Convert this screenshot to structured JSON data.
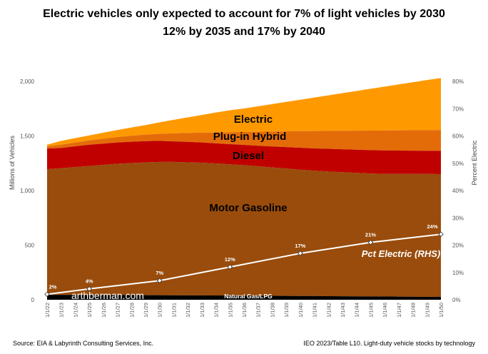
{
  "chart_data": {
    "type": "area",
    "title_lines": [
      "Electric vehicles only expected to account for 7% of light vehicles by 2030",
      "12% by 2035 and 17% by 2040"
    ],
    "ylabel": "Millions of Vehicles",
    "y2label": "Percent Electric",
    "ylim": [
      0,
      2000
    ],
    "y2lim": [
      0,
      80
    ],
    "yticks": [
      "0",
      "500",
      "1,000",
      "1,500",
      "2,000"
    ],
    "y2ticks": [
      "0%",
      "10%",
      "20%",
      "30%",
      "40%",
      "50%",
      "60%",
      "70%",
      "80%"
    ],
    "x": [
      "1/1/22",
      "1/1/23",
      "1/1/24",
      "1/1/25",
      "1/1/26",
      "1/1/27",
      "1/1/28",
      "1/1/29",
      "1/1/30",
      "1/1/31",
      "1/1/32",
      "1/1/33",
      "1/1/34",
      "1/1/35",
      "1/1/36",
      "1/1/37",
      "1/1/38",
      "1/1/39",
      "1/1/40",
      "1/1/41",
      "1/1/42",
      "1/1/43",
      "1/1/44",
      "1/1/45",
      "1/1/46",
      "1/1/47",
      "1/1/48",
      "1/1/49",
      "1/1/50"
    ],
    "stack_totals": {
      "Natural Gas/LPG": [
        45,
        45,
        44,
        44,
        43,
        43,
        43,
        42,
        42,
        41,
        40,
        40,
        39,
        38,
        37,
        37,
        36,
        35,
        34,
        34,
        33,
        32,
        31,
        30,
        30,
        29,
        28,
        27,
        26
      ],
      "Motor Gasoline": [
        1195,
        1205,
        1215,
        1225,
        1235,
        1245,
        1252,
        1258,
        1262,
        1262,
        1258,
        1255,
        1248,
        1240,
        1232,
        1222,
        1212,
        1202,
        1190,
        1182,
        1174,
        1168,
        1162,
        1156,
        1152,
        1152,
        1152,
        1152,
        1150
      ],
      "Diesel": [
        1385,
        1390,
        1405,
        1420,
        1430,
        1440,
        1447,
        1453,
        1455,
        1450,
        1446,
        1440,
        1432,
        1425,
        1418,
        1410,
        1404,
        1398,
        1392,
        1386,
        1382,
        1378,
        1374,
        1370,
        1368,
        1366,
        1365,
        1364,
        1364
      ],
      "Plug-in Hybrid": [
        1405,
        1420,
        1440,
        1460,
        1475,
        1490,
        1502,
        1512,
        1520,
        1524,
        1528,
        1530,
        1532,
        1534,
        1536,
        1538,
        1540,
        1542,
        1544,
        1545,
        1546,
        1547,
        1548,
        1549,
        1550,
        1551,
        1552,
        1553,
        1555
      ],
      "Electric": [
        1420,
        1455,
        1480,
        1505,
        1530,
        1555,
        1578,
        1600,
        1625,
        1648,
        1670,
        1692,
        1715,
        1735,
        1752,
        1772,
        1792,
        1812,
        1832,
        1852,
        1872,
        1892,
        1912,
        1932,
        1952,
        1972,
        1992,
        2012,
        2030
      ]
    },
    "series": [
      {
        "name": "Electric",
        "color": "#FF9900"
      },
      {
        "name": "Plug-in Hybrid",
        "color": "#E36C09"
      },
      {
        "name": "Diesel",
        "color": "#C00000"
      },
      {
        "name": "Motor Gasoline",
        "color": "#994C0C"
      },
      {
        "name": "Natural Gas/LPG",
        "color": "#000000"
      }
    ],
    "pct_electric": {
      "name": "Pct Electric (RHS)",
      "axis": "right",
      "color": "#FFFFFF",
      "x": [
        "1/1/22",
        "1/1/25",
        "1/1/30",
        "1/1/35",
        "1/1/40",
        "1/1/45",
        "1/1/50"
      ],
      "values": [
        2,
        4,
        7,
        12,
        17,
        21,
        24
      ],
      "labels": [
        "2%",
        "4%",
        "7%",
        "12%",
        "17%",
        "21%",
        "24%"
      ]
    },
    "grid": false
  },
  "watermark": "arthberman.com",
  "footer": {
    "left": "Source:  EIA & Labyrinth Consulting Services, Inc.",
    "right": "IEO 2023/Table L10. Light-duty vehicle stocks by technology"
  }
}
